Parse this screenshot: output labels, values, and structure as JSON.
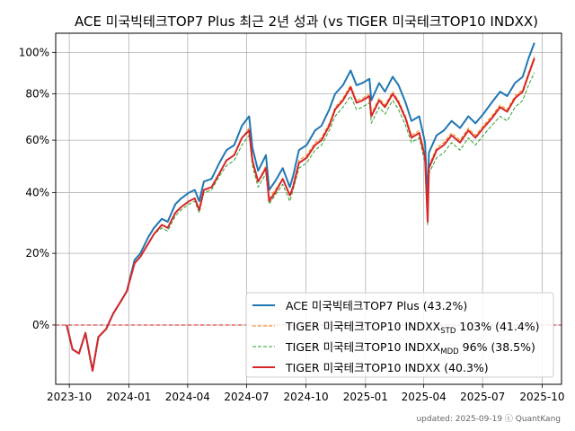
{
  "chart_data": {
    "type": "line",
    "title": "ACE 미국빅테크TOP7 Plus 최근 2년 성과 (vs TIGER 미국테크TOP10 INDXX)",
    "xlabel": "",
    "ylabel": "",
    "y_scale": "log(1+return)",
    "xlim": [
      "2023-09-10",
      "2025-10-31"
    ],
    "ylim": [
      -14,
      110
    ],
    "x_ticks": [
      "2023-10",
      "2024-01",
      "2024-04",
      "2024-07",
      "2024-10",
      "2025-01",
      "2025-04",
      "2025-07",
      "2025-10"
    ],
    "y_ticks": [
      {
        "value": 0,
        "label": "0%"
      },
      {
        "value": 20,
        "label": "20%"
      },
      {
        "value": 40,
        "label": "40%"
      },
      {
        "value": 60,
        "label": "60%"
      },
      {
        "value": 80,
        "label": "80%"
      },
      {
        "value": 100,
        "label": "100%"
      }
    ],
    "grid": true,
    "legend_position": "lower-right",
    "reference_line": {
      "y": 0,
      "color": "#e41a1c",
      "style": "dashed"
    },
    "footer": "updated: 2025-09-19 ⓒ QuantKang",
    "x": [
      "2023-09-27",
      "2023-10-06",
      "2023-10-16",
      "2023-10-26",
      "2023-11-06",
      "2023-11-15",
      "2023-11-27",
      "2023-12-08",
      "2023-12-19",
      "2023-12-29",
      "2024-01-10",
      "2024-01-19",
      "2024-01-31",
      "2024-02-09",
      "2024-02-21",
      "2024-03-01",
      "2024-03-13",
      "2024-03-22",
      "2024-04-03",
      "2024-04-12",
      "2024-04-19",
      "2024-04-26",
      "2024-05-08",
      "2024-05-20",
      "2024-05-31",
      "2024-06-12",
      "2024-06-24",
      "2024-07-05",
      "2024-07-10",
      "2024-07-19",
      "2024-07-31",
      "2024-08-05",
      "2024-08-14",
      "2024-08-26",
      "2024-09-06",
      "2024-09-11",
      "2024-09-20",
      "2024-10-02",
      "2024-10-15",
      "2024-10-25",
      "2024-11-06",
      "2024-11-15",
      "2024-11-27",
      "2024-12-09",
      "2024-12-18",
      "2024-12-27",
      "2025-01-07",
      "2025-01-10",
      "2025-01-22",
      "2025-01-31",
      "2025-02-12",
      "2025-02-21",
      "2025-03-04",
      "2025-03-13",
      "2025-03-25",
      "2025-04-03",
      "2025-04-07",
      "2025-04-09",
      "2025-04-21",
      "2025-05-02",
      "2025-05-14",
      "2025-05-27",
      "2025-06-09",
      "2025-06-20",
      "2025-07-02",
      "2025-07-15",
      "2025-07-28",
      "2025-08-08",
      "2025-08-20",
      "2025-09-01",
      "2025-09-10",
      "2025-09-19"
    ],
    "series": [
      {
        "name": "ACE 미국빅테크TOP7 Plus (43.2%)",
        "color": "#1f77b4",
        "style": "solid",
        "width": 2,
        "values": [
          0,
          -6,
          -7,
          -2,
          -11,
          -3,
          -1,
          3,
          6,
          9,
          18,
          20,
          25,
          28,
          31,
          30,
          36,
          38,
          40,
          41,
          37,
          44,
          45,
          51,
          56,
          58,
          66,
          70,
          57,
          48,
          54,
          41,
          44,
          49,
          42,
          46,
          56,
          58,
          64,
          66,
          73,
          80,
          84,
          91,
          84,
          85,
          87,
          77,
          85,
          81,
          88,
          84,
          76,
          68,
          70,
          59,
          36,
          55,
          62,
          64,
          68,
          65,
          70,
          67,
          71,
          76,
          81,
          79,
          85,
          88,
          97,
          105
        ]
      },
      {
        "name": "TIGER 미국테크TOP10 INDXX STD 103% (41.4%)",
        "color": "#ff7f0e",
        "style": "dashed",
        "width": 1,
        "values": [
          0,
          -6,
          -7,
          -2,
          -11,
          -3,
          -1,
          3,
          6,
          9,
          17,
          19,
          23,
          26,
          29,
          28,
          33,
          35,
          37,
          38,
          34,
          41,
          42,
          47,
          52,
          54,
          61,
          65,
          53,
          44,
          50,
          38,
          41,
          45,
          39,
          43,
          52,
          54,
          59,
          61,
          67,
          74,
          78,
          84,
          77,
          78,
          80,
          71,
          78,
          75,
          81,
          77,
          70,
          62,
          64,
          54,
          31,
          50,
          57,
          59,
          63,
          60,
          65,
          62,
          66,
          70,
          75,
          73,
          79,
          82,
          90,
          98
        ]
      },
      {
        "name": "TIGER 미국테크TOP10 INDXX MDD 96% (38.5%)",
        "color": "#2ca02c",
        "style": "dashed",
        "width": 1,
        "values": [
          0,
          -6,
          -7,
          -2,
          -11,
          -3,
          -1,
          3,
          6,
          9,
          17,
          19,
          23,
          26,
          28,
          27,
          32,
          34,
          36,
          37,
          33,
          40,
          41,
          46,
          50,
          52,
          58,
          62,
          50,
          42,
          47,
          36,
          39,
          43,
          37,
          41,
          49,
          51,
          56,
          58,
          64,
          70,
          74,
          79,
          73,
          74,
          76,
          67,
          74,
          71,
          77,
          73,
          66,
          59,
          61,
          51,
          29,
          47,
          53,
          55,
          59,
          56,
          61,
          58,
          62,
          66,
          70,
          68,
          74,
          77,
          84,
          90
        ]
      },
      {
        "name": "TIGER 미국테크TOP10 INDXX (40.3%)",
        "color": "#d62728",
        "style": "solid",
        "width": 2,
        "values": [
          0,
          -6,
          -7,
          -2,
          -11,
          -3,
          -1,
          3,
          6,
          9,
          17,
          19,
          23,
          26,
          29,
          28,
          33,
          35,
          37,
          38,
          34,
          41,
          42,
          47,
          52,
          54,
          61,
          64,
          52,
          44,
          49,
          37,
          40,
          45,
          39,
          42,
          51,
          53,
          58,
          60,
          66,
          73,
          77,
          83,
          76,
          77,
          79,
          70,
          77,
          74,
          80,
          76,
          69,
          61,
          63,
          53,
          30,
          49,
          56,
          58,
          62,
          59,
          64,
          61,
          65,
          69,
          74,
          72,
          78,
          81,
          89,
          97
        ]
      }
    ]
  }
}
